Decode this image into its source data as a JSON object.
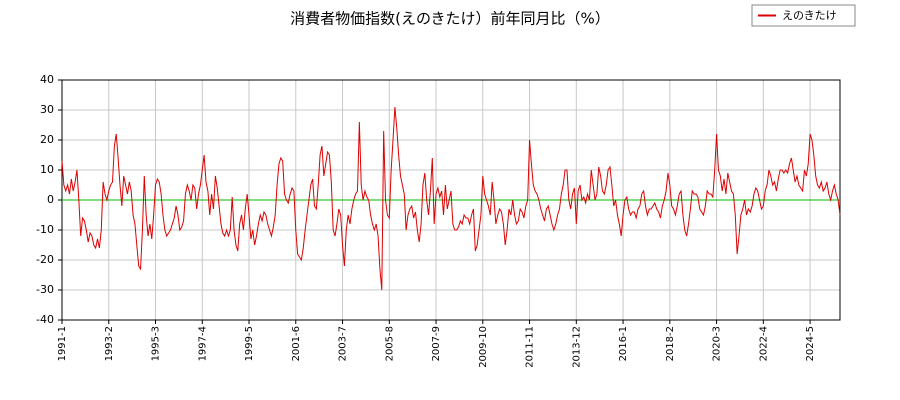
{
  "chart_data": {
    "type": "line",
    "title": "消費者物価指数(えのきたけ）前年同月比（%）",
    "categories": [
      "1991-1",
      null,
      null,
      null,
      null,
      null,
      null,
      null,
      null,
      null,
      null,
      null,
      null,
      null,
      null,
      null,
      null,
      null,
      null,
      null,
      null,
      null,
      null,
      null,
      null,
      "1993-2",
      null,
      null,
      null,
      null,
      null,
      null,
      null,
      null,
      null,
      null,
      null,
      null,
      null,
      null,
      null,
      null,
      null,
      null,
      null,
      null,
      null,
      null,
      null,
      null,
      "1995-3",
      null,
      null,
      null,
      null,
      null,
      null,
      null,
      null,
      null,
      null,
      null,
      null,
      null,
      null,
      null,
      null,
      null,
      null,
      null,
      null,
      null,
      null,
      null,
      null,
      "1997-4",
      null,
      null,
      null,
      null,
      null,
      null,
      null,
      null,
      null,
      null,
      null,
      null,
      null,
      null,
      null,
      null,
      null,
      null,
      null,
      null,
      null,
      null,
      null,
      null,
      "1999-5",
      null,
      null,
      null,
      null,
      null,
      null,
      null,
      null,
      null,
      null,
      null,
      null,
      null,
      null,
      null,
      null,
      null,
      null,
      null,
      null,
      null,
      null,
      null,
      null,
      "2001-6",
      null,
      null,
      null,
      null,
      null,
      null,
      null,
      null,
      null,
      null,
      null,
      null,
      null,
      null,
      null,
      null,
      null,
      null,
      null,
      null,
      null,
      null,
      null,
      null,
      "2003-7",
      null,
      null,
      null,
      null,
      null,
      null,
      null,
      null,
      null,
      null,
      null,
      null,
      null,
      null,
      null,
      null,
      null,
      null,
      null,
      null,
      null,
      null,
      null,
      null,
      "2005-8",
      null,
      null,
      null,
      null,
      null,
      null,
      null,
      null,
      null,
      null,
      null,
      null,
      null,
      null,
      null,
      null,
      null,
      null,
      null,
      null,
      null,
      null,
      null,
      null,
      "2007-9",
      null,
      null,
      null,
      null,
      null,
      null,
      null,
      null,
      null,
      null,
      null,
      null,
      null,
      null,
      null,
      null,
      null,
      null,
      null,
      null,
      null,
      null,
      null,
      null,
      "2009-10",
      null,
      null,
      null,
      null,
      null,
      null,
      null,
      null,
      null,
      null,
      null,
      null,
      null,
      null,
      null,
      null,
      null,
      null,
      null,
      null,
      null,
      null,
      null,
      null,
      "2011-11",
      null,
      null,
      null,
      null,
      null,
      null,
      null,
      null,
      null,
      null,
      null,
      null,
      null,
      null,
      null,
      null,
      null,
      null,
      null,
      null,
      null,
      null,
      null,
      null,
      "2013-12",
      null,
      null,
      null,
      null,
      null,
      null,
      null,
      null,
      null,
      null,
      null,
      null,
      null,
      null,
      null,
      null,
      null,
      null,
      null,
      null,
      null,
      null,
      null,
      null,
      "2016-1",
      null,
      null,
      null,
      null,
      null,
      null,
      null,
      null,
      null,
      null,
      null,
      null,
      null,
      null,
      null,
      null,
      null,
      null,
      null,
      null,
      null,
      null,
      null,
      null,
      "2018-2",
      null,
      null,
      null,
      null,
      null,
      null,
      null,
      null,
      null,
      null,
      null,
      null,
      null,
      null,
      null,
      null,
      null,
      null,
      null,
      null,
      null,
      null,
      null,
      null,
      "2020-3",
      null,
      null,
      null,
      null,
      null,
      null,
      null,
      null,
      null,
      null,
      null,
      null,
      null,
      null,
      null,
      null,
      null,
      null,
      null,
      null,
      null,
      null,
      null,
      null,
      "2022-4",
      null,
      null,
      null,
      null,
      null,
      null,
      null,
      null,
      null,
      null,
      null,
      null,
      null,
      null,
      null,
      null,
      null,
      null,
      null,
      null,
      null,
      null,
      null,
      null,
      "2024-5",
      null,
      null,
      null,
      null,
      null,
      null,
      null,
      null,
      null,
      null,
      null,
      null,
      null,
      null,
      null,
      null
    ],
    "series": [
      {
        "name": "えのきたけ",
        "color": "#dd0000",
        "values": [
          13,
          5,
          3,
          5,
          2,
          7,
          3,
          6,
          10,
          0,
          -12,
          -6,
          -7,
          -10,
          -14,
          -11,
          -12,
          -15,
          -16,
          -13,
          -16,
          -10,
          6,
          2,
          0,
          3,
          5,
          6,
          18,
          22,
          14,
          5,
          -2,
          8,
          5,
          2,
          6,
          3,
          -5,
          -8,
          -15,
          -22,
          -23,
          -10,
          8,
          -5,
          -12,
          -8,
          -13,
          -5,
          5,
          7,
          6,
          2,
          -5,
          -10,
          -12,
          -11,
          -10,
          -8,
          -6,
          -2,
          -5,
          -10,
          -9,
          -7,
          2,
          5,
          3,
          0,
          5,
          4,
          -3,
          2,
          5,
          10,
          15,
          6,
          3,
          -5,
          2,
          -3,
          8,
          4,
          -2,
          -8,
          -11,
          -12,
          -10,
          -12,
          -10,
          1,
          -10,
          -15,
          -17,
          -8,
          -5,
          -10,
          -3,
          2,
          -5,
          -13,
          -10,
          -15,
          -12,
          -8,
          -5,
          -7,
          -4,
          -5,
          -8,
          -10,
          -12,
          -9,
          -5,
          5,
          12,
          14,
          13,
          2,
          0,
          -1,
          2,
          4,
          3,
          -10,
          -18,
          -19,
          -20,
          -16,
          -10,
          -5,
          0,
          5,
          7,
          -2,
          -3,
          5,
          15,
          18,
          8,
          12,
          16,
          15,
          6,
          -10,
          -12,
          -8,
          -3,
          -5,
          -15,
          -22,
          -10,
          -5,
          -8,
          -3,
          0,
          2,
          3,
          26,
          5,
          0,
          3,
          1,
          0,
          -5,
          -8,
          -10,
          -8,
          -12,
          -23,
          -30,
          23,
          0,
          -5,
          -6,
          10,
          20,
          31,
          24,
          15,
          8,
          5,
          2,
          -10,
          -5,
          -3,
          -2,
          -6,
          -4,
          -10,
          -14,
          -8,
          5,
          9,
          0,
          -5,
          3,
          14,
          -8,
          2,
          4,
          1,
          3,
          -5,
          5,
          -3,
          0,
          3,
          -8,
          -10,
          -10,
          -9,
          -7,
          -8,
          -5,
          -6,
          -6,
          -8,
          -5,
          -3,
          -17,
          -15,
          -10,
          -5,
          8,
          2,
          0,
          -2,
          -5,
          6,
          0,
          -8,
          -5,
          -3,
          -4,
          -8,
          -15,
          -10,
          -3,
          -5,
          0,
          -5,
          -8,
          -7,
          -3,
          -4,
          -6,
          -2,
          0,
          20,
          12,
          5,
          3,
          2,
          0,
          -3,
          -5,
          -7,
          -3,
          -2,
          -5,
          -8,
          -10,
          -8,
          -5,
          -3,
          2,
          5,
          10,
          10,
          0,
          -3,
          2,
          4,
          -8,
          3,
          5,
          0,
          1,
          -1,
          2,
          0,
          10,
          5,
          0,
          2,
          11,
          8,
          3,
          2,
          5,
          10,
          11,
          5,
          -2,
          0,
          -5,
          -8,
          -12,
          -5,
          0,
          1,
          -3,
          -5,
          -4,
          -4,
          -6,
          -3,
          -2,
          2,
          3,
          -2,
          -5,
          -3,
          -3,
          -2,
          -1,
          -3,
          -4,
          -6,
          -2,
          0,
          3,
          9,
          5,
          -2,
          -3,
          -5,
          -2,
          2,
          3,
          -5,
          -10,
          -12,
          -8,
          -3,
          3,
          2,
          2,
          1,
          -3,
          -4,
          -5,
          -2,
          3,
          2,
          2,
          1,
          10,
          22,
          10,
          8,
          3,
          7,
          2,
          9,
          6,
          3,
          2,
          -5,
          -18,
          -12,
          -5,
          -3,
          0,
          -5,
          -3,
          -4,
          -2,
          2,
          4,
          3,
          0,
          -3,
          -2,
          3,
          5,
          10,
          8,
          5,
          6,
          3,
          7,
          10,
          10,
          9,
          10,
          9,
          12,
          14,
          10,
          6,
          8,
          5,
          4,
          3,
          10,
          8,
          12,
          22,
          20,
          15,
          8,
          5,
          4,
          6,
          3,
          4,
          6,
          2,
          0,
          3,
          5,
          2,
          0,
          -5
        ]
      }
    ],
    "ylim": [
      -40,
      40
    ],
    "yticks": [
      -40,
      -30,
      -20,
      -10,
      0,
      10,
      20,
      30,
      40
    ],
    "grid": true,
    "legend": "top-right",
    "zero_line_color": "#00bb00"
  }
}
